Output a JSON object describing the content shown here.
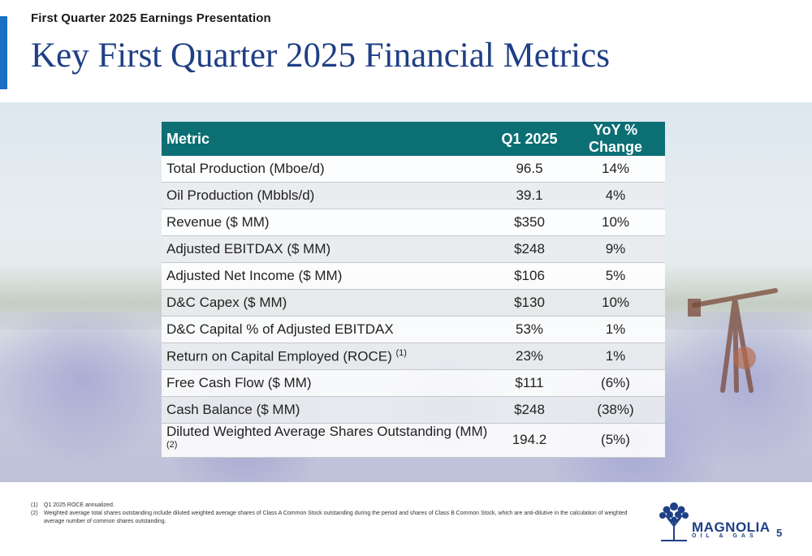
{
  "header": {
    "subtitle": "First Quarter 2025 Earnings Presentation",
    "title": "Key First Quarter 2025 Financial Metrics"
  },
  "table": {
    "headers": [
      "Metric",
      "Q1 2025",
      "YoY % Change"
    ],
    "rows": [
      {
        "metric": "Total Production (Mboe/d)",
        "note": "",
        "q1": "96.5",
        "yoy": "14%"
      },
      {
        "metric": "Oil Production (Mbbls/d)",
        "note": "",
        "q1": "39.1",
        "yoy": "4%"
      },
      {
        "metric": "Revenue ($ MM)",
        "note": "",
        "q1": "$350",
        "yoy": "10%"
      },
      {
        "metric": "Adjusted EBITDAX ($ MM)",
        "note": "",
        "q1": "$248",
        "yoy": "9%"
      },
      {
        "metric": "Adjusted Net Income ($ MM)",
        "note": "",
        "q1": "$106",
        "yoy": "5%"
      },
      {
        "metric": "D&C Capex ($ MM)",
        "note": "",
        "q1": "$130",
        "yoy": "10%"
      },
      {
        "metric": "D&C Capital % of Adjusted EBITDAX",
        "note": "",
        "q1": "53%",
        "yoy": "1%"
      },
      {
        "metric": "Return on Capital Employed (ROCE)",
        "note": "(1)",
        "q1": "23%",
        "yoy": "1%"
      },
      {
        "metric": "Free Cash Flow ($ MM)",
        "note": "",
        "q1": "$111",
        "yoy": "(6%)"
      },
      {
        "metric": "Cash Balance ($ MM)",
        "note": "",
        "q1": "$248",
        "yoy": "(38%)"
      },
      {
        "metric": "Diluted Weighted Average Shares Outstanding (MM)",
        "note": "(2)",
        "q1": "194.2",
        "yoy": "(5%)"
      }
    ]
  },
  "footnotes": [
    {
      "num": "(1)",
      "text": "Q1 2025 ROCE annualized."
    },
    {
      "num": "(2)",
      "text": "Weighted average total shares outstanding include diluted weighted average shares of Class A Common Stock outstanding during the period and shares of Class B Common Stock, which are anti-dilutive in the calculation of weighted average number of common shares outstanding."
    }
  ],
  "logo": {
    "word": "MAGNOLIA",
    "sub": "OIL & GAS"
  },
  "page_number": "5",
  "colors": {
    "accent": "#1a6fc2",
    "title": "#1f3f86",
    "table_header": "#0c6f74"
  }
}
